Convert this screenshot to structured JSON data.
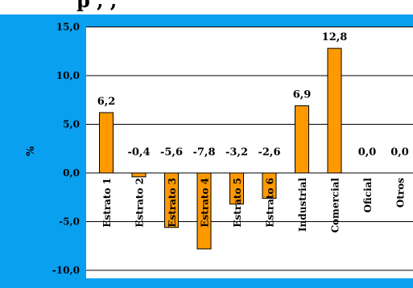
{
  "header": {
    "title_fragment": "p                        ,      ,"
  },
  "chart_data": {
    "type": "bar",
    "title": "",
    "xlabel": "",
    "ylabel": "%",
    "ylim": [
      -10.0,
      15.0
    ],
    "y_ticks": [
      "15,0",
      "10,0",
      "5,0",
      "0,0",
      "-5,0",
      "-10,0"
    ],
    "y_tick_values": [
      15,
      10,
      5,
      0,
      -5,
      -10
    ],
    "categories": [
      "Estrato 1",
      "Estrato 2",
      "Estrato 3",
      "Estrato 4",
      "Estrato 5",
      "Estrato 6",
      "Industrial",
      "Comercial",
      "Oficial",
      "Otros"
    ],
    "values": [
      6.2,
      -0.4,
      -5.6,
      -7.8,
      -3.2,
      -2.6,
      6.9,
      12.8,
      0.0,
      0.0
    ],
    "data_labels": [
      "6,2",
      "-0,4",
      "-5,6",
      "-7,8",
      "-3,2",
      "-2,6",
      "6,9",
      "12,8",
      "0,0",
      "0,0"
    ],
    "grid": true,
    "colors": {
      "panel": "#0aa0f0",
      "plot": "#ffffff",
      "bar": "#ff9900",
      "bar_edge": "#000000"
    }
  }
}
